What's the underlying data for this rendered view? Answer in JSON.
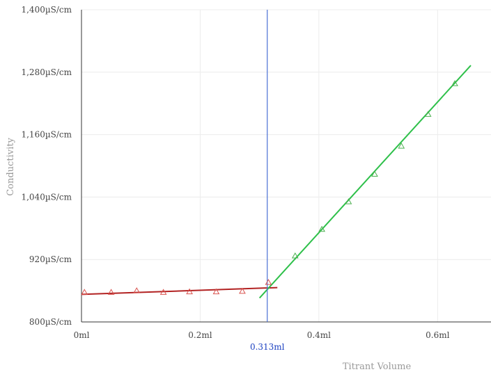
{
  "chart_data": {
    "type": "scatter",
    "xlabel": "Titrant Volume",
    "ylabel": "Conductivity",
    "xlim": [
      0,
      0.69
    ],
    "ylim": [
      800,
      1400
    ],
    "x_ticks": [
      {
        "value": 0,
        "label": "0ml"
      },
      {
        "value": 0.2,
        "label": "0.2ml"
      },
      {
        "value": 0.4,
        "label": "0.4ml"
      },
      {
        "value": 0.6,
        "label": "0.6ml"
      }
    ],
    "y_ticks": [
      {
        "value": 800,
        "label": "800µS/cm"
      },
      {
        "value": 920,
        "label": "920µS/cm"
      },
      {
        "value": 1040,
        "label": "1,040µS/cm"
      },
      {
        "value": 1160,
        "label": "1,160µS/cm"
      },
      {
        "value": 1280,
        "label": "1,280µS/cm"
      },
      {
        "value": 1400,
        "label": "1,400µS/cm"
      }
    ],
    "grid": true,
    "equivalence_point": {
      "x": 0.313,
      "label": "0.313ml",
      "color": "#4a6fd4",
      "label_color": "#1a3fc0"
    },
    "series": [
      {
        "marker": "triangle",
        "color": "#d9534f",
        "line_color": "#b22222",
        "points": [
          [
            0.005,
            857
          ],
          [
            0.05,
            857
          ],
          [
            0.093,
            860
          ],
          [
            0.138,
            857
          ],
          [
            0.182,
            858
          ],
          [
            0.227,
            858
          ],
          [
            0.271,
            859
          ],
          [
            0.315,
            876
          ]
        ],
        "fit_line": [
          [
            0,
            853
          ],
          [
            0.33,
            866
          ]
        ]
      },
      {
        "marker": "triangle",
        "color": "#4caf50",
        "line_color": "#2ec04a",
        "points": [
          [
            0.36,
            927
          ],
          [
            0.405,
            978
          ],
          [
            0.45,
            1031
          ],
          [
            0.494,
            1084
          ],
          [
            0.539,
            1138
          ],
          [
            0.584,
            1199
          ],
          [
            0.629,
            1258
          ]
        ],
        "fit_line": [
          [
            0.3,
            846
          ],
          [
            0.656,
            1293
          ]
        ]
      }
    ]
  }
}
